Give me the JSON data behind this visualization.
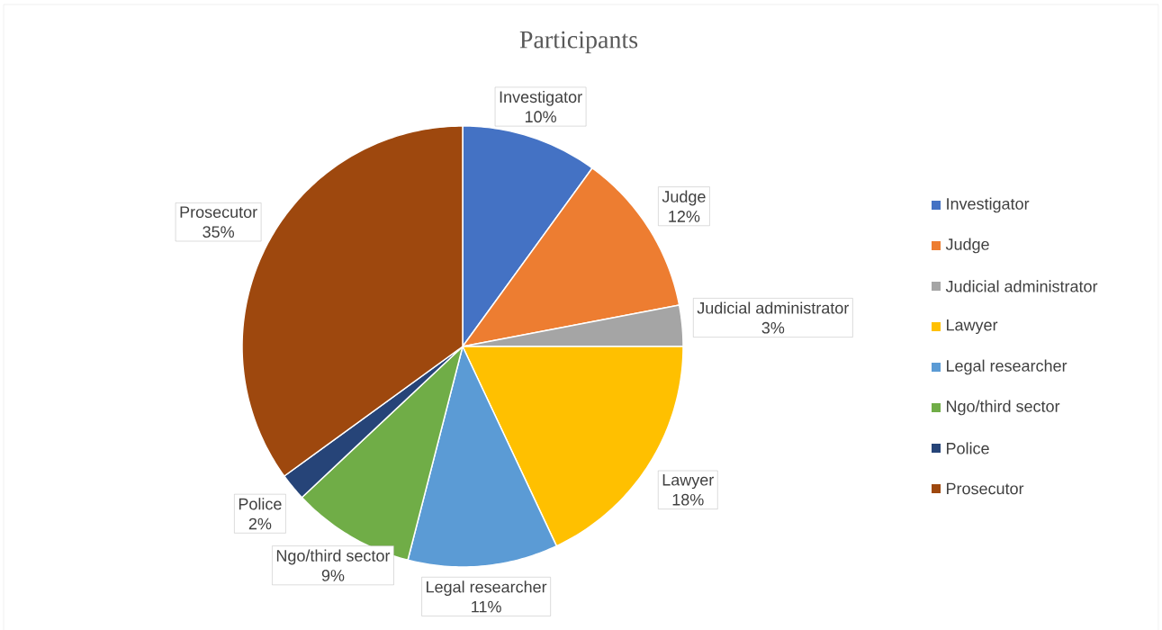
{
  "chart_data": {
    "type": "pie",
    "title": "Participants",
    "categories": [
      "Investigator",
      "Judge",
      "Judicial administrator",
      "Lawyer",
      "Legal researcher",
      "Ngo/third sector",
      "Police",
      "Prosecutor"
    ],
    "values": [
      10,
      12,
      3,
      18,
      11,
      9,
      2,
      35
    ],
    "value_labels": [
      "10%",
      "12%",
      "3%",
      "18%",
      "11%",
      "9%",
      "2%",
      "35%"
    ],
    "colors": [
      "#4472c4",
      "#ed7d31",
      "#a5a5a5",
      "#ffc000",
      "#5b9bd5",
      "#70ad47",
      "#264478",
      "#9e480e"
    ],
    "legend": "right"
  }
}
